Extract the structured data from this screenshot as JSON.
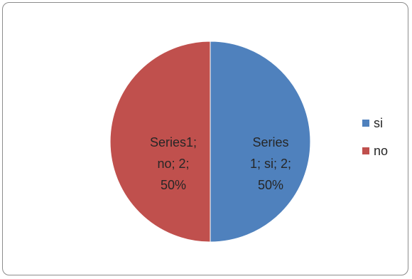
{
  "chart_data": {
    "type": "pie",
    "title": "",
    "series": [
      {
        "name": "Series1",
        "categories": [
          "si",
          "no"
        ],
        "values": [
          2,
          2
        ],
        "percentages": [
          "50%",
          "50%"
        ],
        "colors": [
          "#4f81bd",
          "#c0504d"
        ]
      }
    ],
    "data_labels": [
      "Series\n1; si; 2;\n50%",
      "Series1;\nno; 2;\n50%"
    ],
    "legend": {
      "position": "right",
      "entries": [
        "si",
        "no"
      ]
    }
  }
}
